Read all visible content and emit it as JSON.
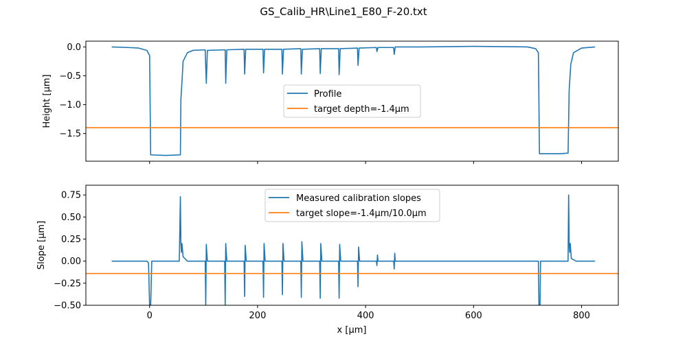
{
  "figure": {
    "title": "GS_Calib_HR\\Line1_E80_F-20.txt"
  },
  "chart_data": [
    {
      "type": "line",
      "ylabel": "Height [µm]",
      "xlim": [
        -118,
        868
      ],
      "ylim": [
        -1.98,
        0.1
      ],
      "x_ticks": [
        0,
        200,
        400,
        600,
        800
      ],
      "y_ticks": [
        0.0,
        -0.5,
        -1.0,
        -1.5
      ],
      "y_tick_labels": [
        "0.0",
        "−0.5",
        "−1.0",
        "−1.5"
      ],
      "legend": {
        "position": "center",
        "entries": [
          "Profile",
          "target depth=-1.4µm"
        ]
      },
      "series": [
        {
          "name": "Profile",
          "color": "#1f77b4",
          "points": [
            [
              -70,
              0.0
            ],
            [
              -40,
              -0.01
            ],
            [
              -20,
              -0.02
            ],
            [
              -5,
              -0.06
            ],
            [
              0,
              -0.15
            ],
            [
              2,
              -1.87
            ],
            [
              30,
              -1.88
            ],
            [
              57,
              -1.87
            ],
            [
              58,
              -0.9
            ],
            [
              60,
              -0.6
            ],
            [
              62,
              -0.25
            ],
            [
              70,
              -0.1
            ],
            [
              80,
              -0.06
            ],
            [
              103,
              -0.05
            ],
            [
              105,
              -0.63
            ],
            [
              107,
              -0.06
            ],
            [
              140,
              -0.05
            ],
            [
              141,
              -0.63
            ],
            [
              143,
              -0.05
            ],
            [
              175,
              -0.04
            ],
            [
              176,
              -0.47
            ],
            [
              178,
              -0.04
            ],
            [
              210,
              -0.04
            ],
            [
              211,
              -0.45
            ],
            [
              213,
              -0.04
            ],
            [
              245,
              -0.04
            ],
            [
              246,
              -0.47
            ],
            [
              248,
              -0.04
            ],
            [
              280,
              -0.03
            ],
            [
              281,
              -0.47
            ],
            [
              283,
              -0.04
            ],
            [
              315,
              -0.03
            ],
            [
              316,
              -0.46
            ],
            [
              318,
              -0.03
            ],
            [
              350,
              -0.03
            ],
            [
              351,
              -0.48
            ],
            [
              353,
              -0.03
            ],
            [
              385,
              -0.02
            ],
            [
              386,
              -0.32
            ],
            [
              388,
              -0.02
            ],
            [
              420,
              -0.01
            ],
            [
              421,
              -0.08
            ],
            [
              423,
              -0.01
            ],
            [
              452,
              -0.01
            ],
            [
              453,
              -0.13
            ],
            [
              455,
              0.0
            ],
            [
              500,
              0.0
            ],
            [
              600,
              0.01
            ],
            [
              700,
              0.0
            ],
            [
              715,
              -0.03
            ],
            [
              720,
              -0.1
            ],
            [
              722,
              -1.85
            ],
            [
              760,
              -1.85
            ],
            [
              775,
              -1.84
            ],
            [
              777,
              -0.75
            ],
            [
              780,
              -0.3
            ],
            [
              785,
              -0.1
            ],
            [
              800,
              -0.02
            ],
            [
              825,
              0.0
            ]
          ]
        },
        {
          "name": "target depth=-1.4µm",
          "color": "#ff7f0e",
          "points": [
            [
              -118,
              -1.4
            ],
            [
              868,
              -1.4
            ]
          ]
        }
      ]
    },
    {
      "type": "line",
      "xlabel": "x [µm]",
      "ylabel": "Slope [µm]",
      "xlim": [
        -118,
        868
      ],
      "ylim": [
        -0.5,
        0.86
      ],
      "x_ticks": [
        0,
        200,
        400,
        600,
        800
      ],
      "y_ticks": [
        0.75,
        0.5,
        0.25,
        0.0,
        -0.25,
        -0.5
      ],
      "y_tick_labels": [
        "0.75",
        "0.50",
        "0.25",
        "0.00",
        "−0.25",
        "−0.50"
      ],
      "legend": {
        "position": "upper center",
        "entries": [
          "Measured calibration slopes",
          "target slope=-1.4µm/10.0µm"
        ]
      },
      "series": [
        {
          "name": "Measured calibration slopes",
          "color": "#1f77b4",
          "points": [
            [
              -70,
              0.0
            ],
            [
              -5,
              0.0
            ],
            [
              -2,
              -0.02
            ],
            [
              0,
              -0.5
            ],
            [
              2,
              -0.5
            ],
            [
              4,
              0.0
            ],
            [
              55,
              0.0
            ],
            [
              57,
              0.73
            ],
            [
              58,
              0.2
            ],
            [
              59,
              0.1
            ],
            [
              60,
              0.2
            ],
            [
              62,
              0.05
            ],
            [
              70,
              0.0
            ],
            [
              103,
              0.0
            ],
            [
              104,
              -0.5
            ],
            [
              105,
              0.19
            ],
            [
              107,
              0.0
            ],
            [
              139,
              0.0
            ],
            [
              140,
              -0.5
            ],
            [
              141,
              0.2
            ],
            [
              143,
              0.0
            ],
            [
              175,
              0.0
            ],
            [
              176,
              -0.4
            ],
            [
              177,
              0.18
            ],
            [
              179,
              0.0
            ],
            [
              210,
              0.0
            ],
            [
              211,
              -0.41
            ],
            [
              212,
              0.2
            ],
            [
              214,
              0.0
            ],
            [
              245,
              0.0
            ],
            [
              246,
              -0.38
            ],
            [
              247,
              0.2
            ],
            [
              249,
              0.0
            ],
            [
              280,
              0.0
            ],
            [
              281,
              -0.41
            ],
            [
              282,
              0.22
            ],
            [
              284,
              0.0
            ],
            [
              315,
              0.0
            ],
            [
              316,
              -0.42
            ],
            [
              317,
              0.2
            ],
            [
              319,
              0.0
            ],
            [
              350,
              0.0
            ],
            [
              351,
              -0.42
            ],
            [
              352,
              0.19
            ],
            [
              354,
              0.0
            ],
            [
              385,
              0.0
            ],
            [
              386,
              -0.29
            ],
            [
              387,
              0.16
            ],
            [
              389,
              0.0
            ],
            [
              420,
              0.0
            ],
            [
              421,
              -0.05
            ],
            [
              422,
              0.07
            ],
            [
              423,
              0.0
            ],
            [
              452,
              0.0
            ],
            [
              453,
              -0.09
            ],
            [
              454,
              0.09
            ],
            [
              455,
              0.0
            ],
            [
              600,
              0.0
            ],
            [
              720,
              0.0
            ],
            [
              721,
              -0.5
            ],
            [
              723,
              -0.5
            ],
            [
              724,
              0.0
            ],
            [
              775,
              0.0
            ],
            [
              776,
              0.75
            ],
            [
              777,
              0.2
            ],
            [
              778,
              0.1
            ],
            [
              779,
              0.2
            ],
            [
              781,
              0.03
            ],
            [
              790,
              0.0
            ],
            [
              825,
              0.0
            ]
          ]
        },
        {
          "name": "target slope=-1.4µm/10.0µm",
          "color": "#ff7f0e",
          "points": [
            [
              -118,
              -0.14
            ],
            [
              868,
              -0.14
            ]
          ]
        }
      ]
    }
  ]
}
